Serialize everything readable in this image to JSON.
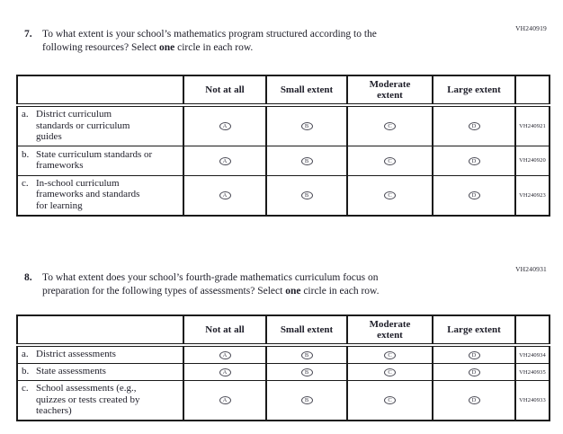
{
  "q7": {
    "number": "7.",
    "code": "VH240919",
    "line1": "To what extent is your school’s mathematics program structured according to the",
    "line2_pre": "following resources? Select ",
    "bold_word": "one",
    "line2_post": " circle in each row.",
    "columns": [
      "Not at all",
      "Small extent",
      "Moderate extent",
      "Large extent"
    ],
    "letters": [
      "A",
      "B",
      "C",
      "D"
    ],
    "rows": [
      {
        "letter": "a.",
        "label": "District curriculum standards or curriculum guides",
        "code": "VH240921"
      },
      {
        "letter": "b.",
        "label": "State curriculum standards or frameworks",
        "code": "VH240920"
      },
      {
        "letter": "c.",
        "label": "In-school curriculum frameworks and standards for learning",
        "code": "VH240923"
      }
    ]
  },
  "q8": {
    "number": "8.",
    "code": "VH240931",
    "line1": "To what extent does your school’s fourth-grade mathematics curriculum focus on",
    "line2_pre": "preparation for the following types of assessments? Select ",
    "bold_word": "one",
    "line2_post": " circle in each row.",
    "columns": [
      "Not at all",
      "Small extent",
      "Moderate extent",
      "Large extent"
    ],
    "letters": [
      "A",
      "B",
      "C",
      "D"
    ],
    "rows": [
      {
        "letter": "a.",
        "label": "District assessments",
        "code": "VH240934"
      },
      {
        "letter": "b.",
        "label": "State assessments",
        "code": "VH240935"
      },
      {
        "letter": "c.",
        "label": "School assessments (e.g., quizzes or tests created by teachers)",
        "code": "VH240933"
      }
    ]
  }
}
